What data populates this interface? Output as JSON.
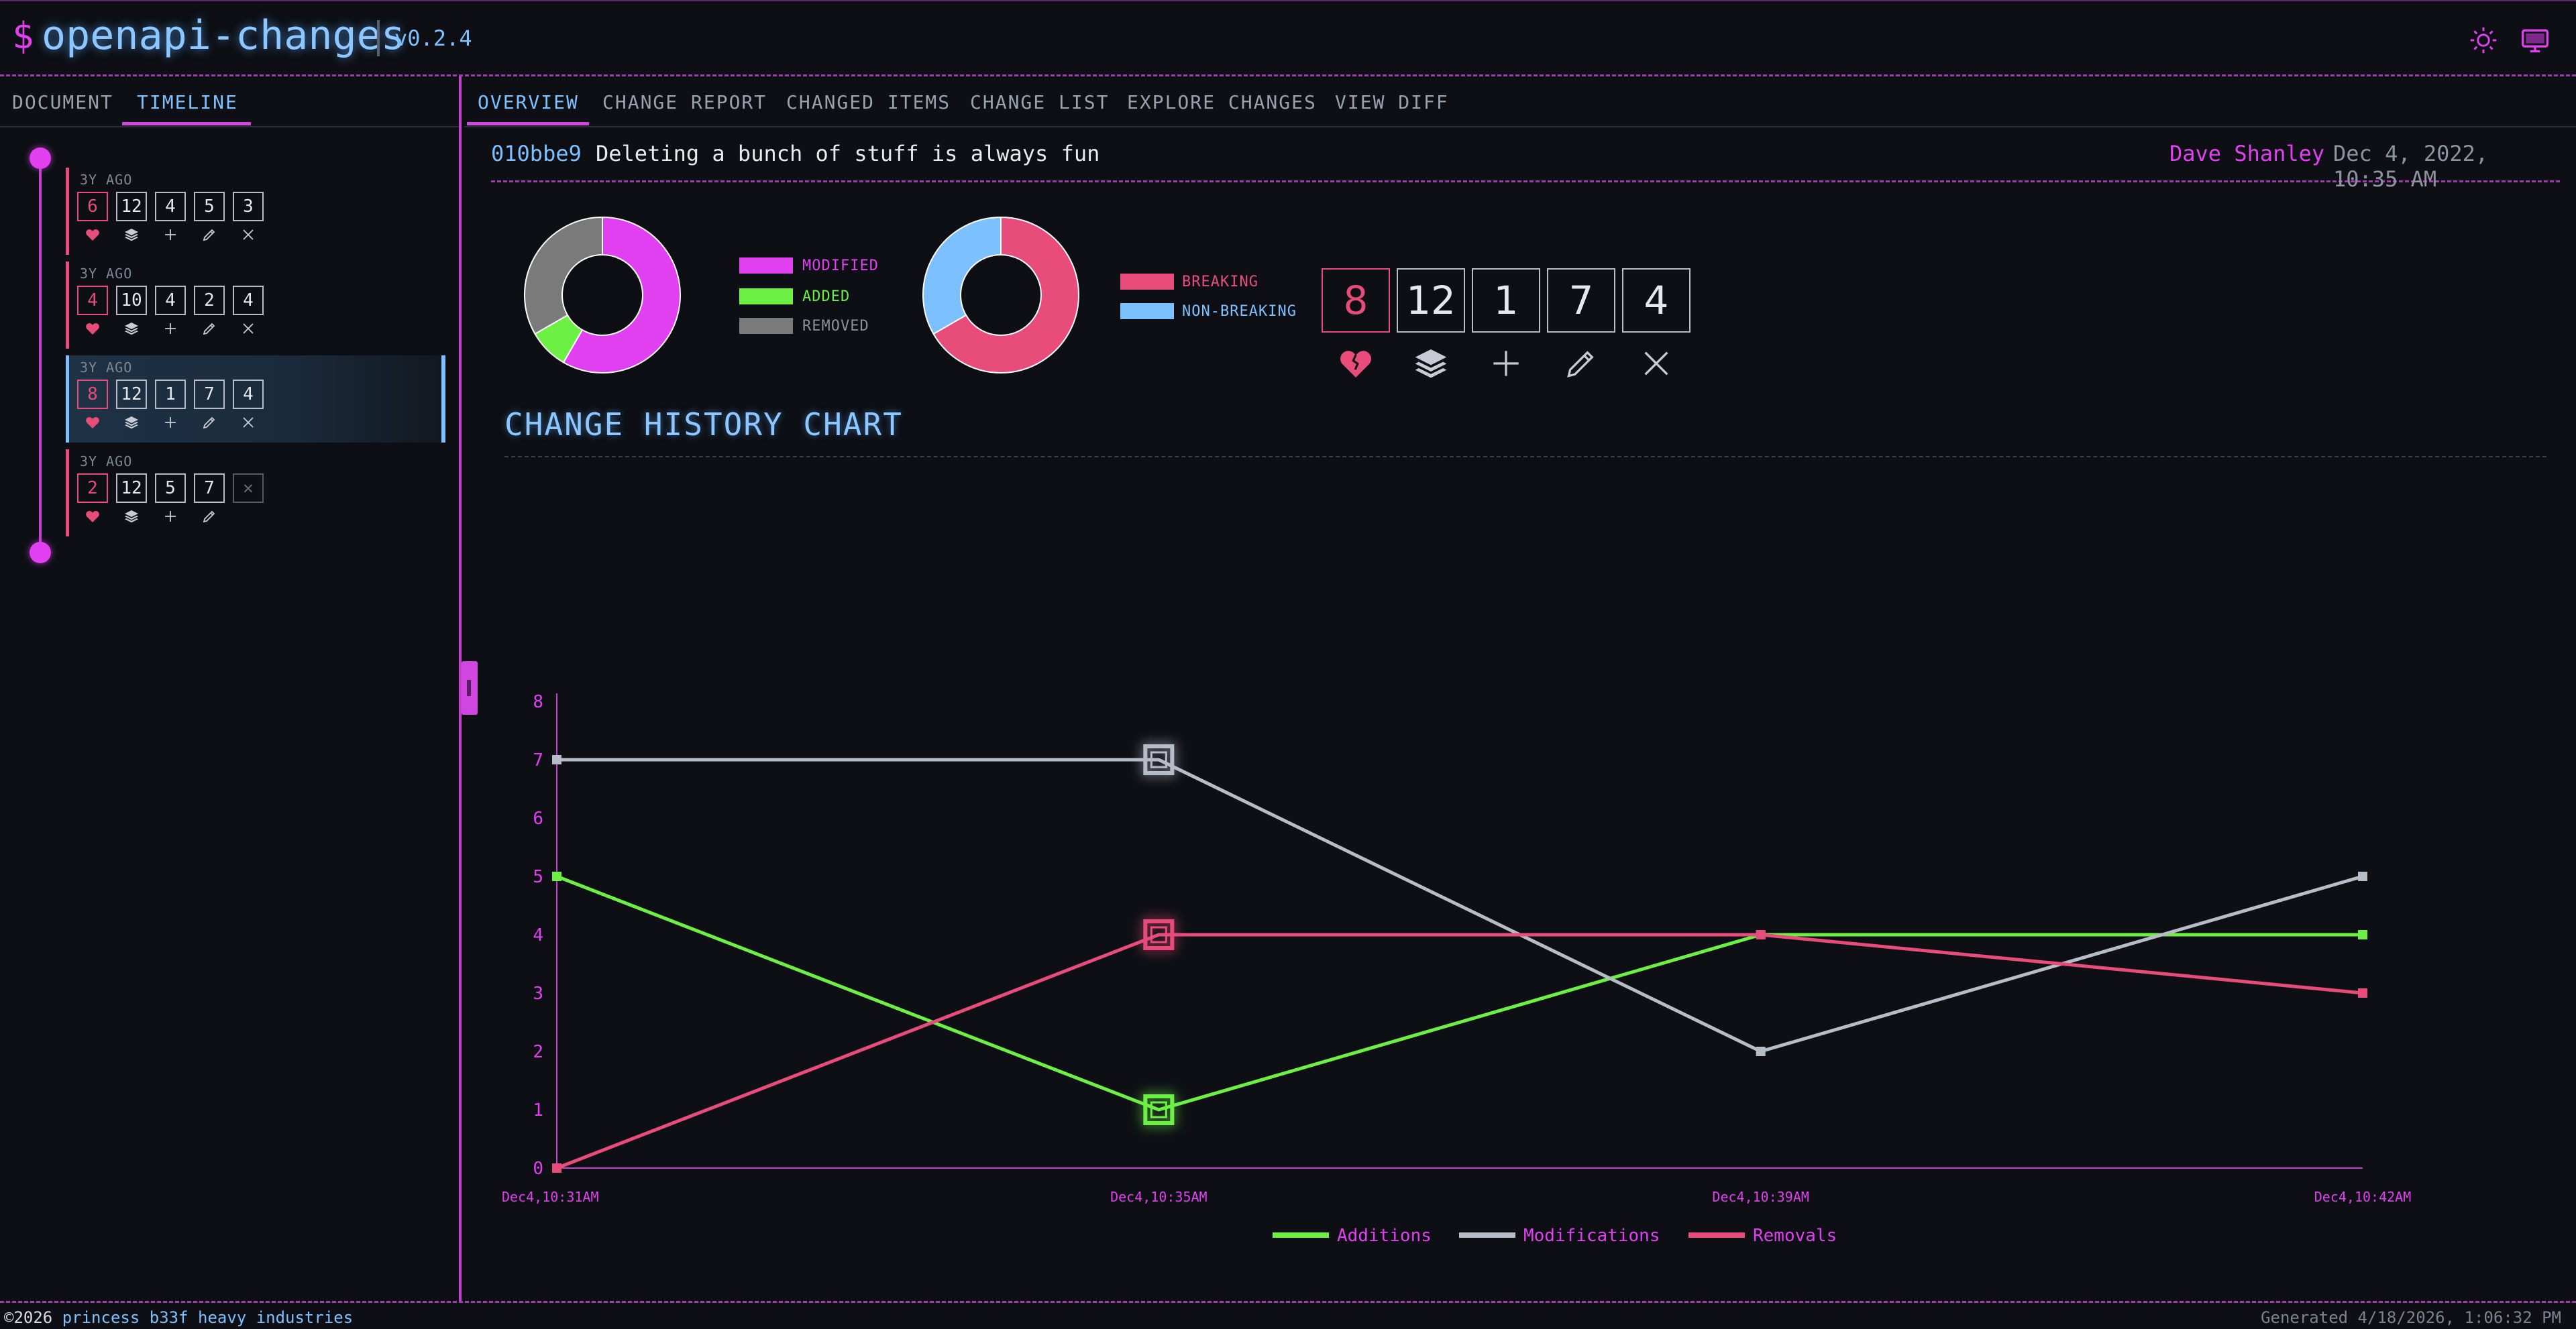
{
  "header": {
    "prompt_symbol": "$",
    "app_name": "openapi-changes",
    "version": "v0.2.4"
  },
  "left_tabs": [
    {
      "label": "DOCUMENT",
      "active": false
    },
    {
      "label": "TIMELINE",
      "active": true
    }
  ],
  "main_tabs": [
    {
      "label": "OVERVIEW",
      "active": true
    },
    {
      "label": "CHANGE REPORT",
      "active": false
    },
    {
      "label": "CHANGED ITEMS",
      "active": false
    },
    {
      "label": "CHANGE LIST",
      "active": false
    },
    {
      "label": "EXPLORE CHANGES",
      "active": false
    },
    {
      "label": "VIEW DIFF",
      "active": false
    }
  ],
  "timeline": [
    {
      "age": "3Y AGO",
      "breaking": "6",
      "total": "12",
      "added": "4",
      "modified": "5",
      "removed": "3",
      "selected": false
    },
    {
      "age": "3Y AGO",
      "breaking": "4",
      "total": "10",
      "added": "4",
      "modified": "2",
      "removed": "4",
      "selected": false
    },
    {
      "age": "3Y AGO",
      "breaking": "8",
      "total": "12",
      "added": "1",
      "modified": "7",
      "removed": "4",
      "selected": true
    },
    {
      "age": "3Y AGO",
      "breaking": "2",
      "total": "12",
      "added": "5",
      "modified": "7",
      "removed": "",
      "selected": false
    }
  ],
  "commit": {
    "hash": "010bbe9",
    "message": "Deleting a bunch of stuff is always fun",
    "author": "Dave Shanley",
    "date": "Dec 4, 2022, 10:35 AM"
  },
  "change_type_donut": {
    "legend": [
      {
        "label": "MODIFIED",
        "value": 7,
        "color": "#e040f0"
      },
      {
        "label": "ADDED",
        "value": 1,
        "color": "#6cf044"
      },
      {
        "label": "REMOVED",
        "value": 4,
        "color": "#7a7a7a"
      }
    ]
  },
  "breaking_donut": {
    "legend": [
      {
        "label": "BREAKING",
        "value": 8,
        "color": "#e84c7a"
      },
      {
        "label": "NON-BREAKING",
        "value": 4,
        "color": "#7cc0ff"
      }
    ]
  },
  "summary": {
    "breaking": "8",
    "total": "12",
    "added": "1",
    "modified": "7",
    "removed": "4"
  },
  "chart_title": "CHANGE HISTORY CHART",
  "chart_data": {
    "type": "line",
    "x": [
      "Dec4,10:31AM",
      "Dec4,10:35AM",
      "Dec4,10:39AM",
      "Dec4,10:42AM"
    ],
    "ylim": [
      0,
      8
    ],
    "yticks": [
      "0",
      "1",
      "2",
      "3",
      "4",
      "5",
      "6",
      "7",
      "8"
    ],
    "highlight_index": 1,
    "series": [
      {
        "name": "Additions",
        "color": "#6cf044",
        "values": [
          5,
          1,
          4,
          4
        ]
      },
      {
        "name": "Modifications",
        "color": "#b8bcc8",
        "values": [
          7,
          7,
          2,
          5
        ]
      },
      {
        "name": "Removals",
        "color": "#e84c7a",
        "values": [
          0,
          4,
          4,
          3
        ]
      }
    ]
  },
  "footer": {
    "copyright_prefix": "©2026",
    "company": "princess b33f heavy industries",
    "generated": "Generated 4/18/2026, 1:06:32 PM"
  }
}
